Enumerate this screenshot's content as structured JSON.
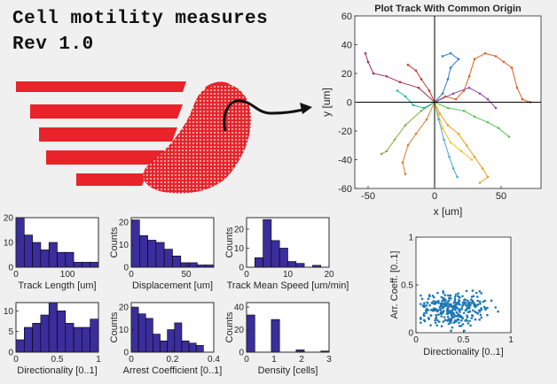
{
  "app": {
    "title_line1": "Cell motility measures",
    "title_line2": "Rev 1.0"
  },
  "colors": {
    "logo_red": "#e8232a",
    "histogram_bar": "#3a2d9c",
    "scatter_point": "#1f77b4",
    "axes_background": "#ffffff",
    "figure_background": "#f0f0f0"
  },
  "logo": {
    "icon": "cell-motility-logo-icon",
    "arrow_icon": "curved-arrow-icon"
  },
  "chart_data": [
    {
      "id": "track_plot",
      "type": "line",
      "title": "Plot Track With Common Origin",
      "xlabel": "x [um]",
      "ylabel": "y [um]",
      "xlim": [
        -60,
        80
      ],
      "ylim": [
        -60,
        60
      ],
      "x_ticks": [
        "-50",
        "0",
        "50"
      ],
      "x_tick_values": [
        -50,
        0,
        50
      ],
      "y_ticks": [
        "60",
        "40",
        "20",
        "0",
        "-20",
        "-40",
        "-60"
      ],
      "y_tick_values": [
        60,
        40,
        20,
        0,
        -20,
        -40,
        -60
      ],
      "grid": false,
      "origin_crosshair": true,
      "series": [
        {
          "color": "#e5a01e",
          "points": [
            [
              0,
              0
            ],
            [
              4,
              -8
            ],
            [
              10,
              -16
            ],
            [
              18,
              -22
            ],
            [
              24,
              -30
            ],
            [
              30,
              -38
            ],
            [
              36,
              -46
            ],
            [
              40,
              -52
            ],
            [
              34,
              -56
            ]
          ]
        },
        {
          "color": "#4aa3df",
          "points": [
            [
              0,
              0
            ],
            [
              3,
              -12
            ],
            [
              7,
              -26
            ],
            [
              11,
              -38
            ],
            [
              14,
              -46
            ],
            [
              17,
              -52
            ]
          ]
        },
        {
          "color": "#d95f1e",
          "points": [
            [
              0,
              0
            ],
            [
              8,
              4
            ],
            [
              16,
              2
            ],
            [
              22,
              8
            ],
            [
              26,
              18
            ],
            [
              30,
              30
            ],
            [
              38,
              34
            ],
            [
              46,
              32
            ],
            [
              52,
              28
            ],
            [
              58,
              24
            ],
            [
              62,
              10
            ],
            [
              66,
              2
            ],
            [
              72,
              0
            ]
          ]
        },
        {
          "color": "#2a7bd8",
          "points": [
            [
              0,
              0
            ],
            [
              6,
              6
            ],
            [
              10,
              16
            ],
            [
              12,
              24
            ],
            [
              18,
              30
            ],
            [
              12,
              34
            ],
            [
              6,
              32
            ]
          ]
        },
        {
          "color": "#7fb13c",
          "points": [
            [
              0,
              0
            ],
            [
              -10,
              -6
            ],
            [
              -22,
              -16
            ],
            [
              -30,
              -26
            ],
            [
              -36,
              -34
            ],
            [
              -40,
              -36
            ]
          ]
        },
        {
          "color": "#a03050",
          "points": [
            [
              0,
              0
            ],
            [
              -12,
              10
            ],
            [
              -26,
              14
            ],
            [
              -36,
              18
            ],
            [
              -46,
              20
            ],
            [
              -50,
              28
            ],
            [
              -52,
              34
            ]
          ]
        },
        {
          "color": "#e07b27",
          "points": [
            [
              0,
              0
            ],
            [
              -6,
              -12
            ],
            [
              -14,
              -22
            ],
            [
              -20,
              -30
            ],
            [
              -24,
              -42
            ],
            [
              -22,
              -50
            ]
          ]
        },
        {
          "color": "#5bbf5a",
          "points": [
            [
              0,
              0
            ],
            [
              10,
              -4
            ],
            [
              22,
              -6
            ],
            [
              30,
              -10
            ],
            [
              40,
              -14
            ],
            [
              48,
              -18
            ],
            [
              56,
              -24
            ]
          ]
        },
        {
          "color": "#8e44ad",
          "points": [
            [
              0,
              0
            ],
            [
              14,
              6
            ],
            [
              26,
              10
            ],
            [
              34,
              6
            ],
            [
              40,
              2
            ],
            [
              46,
              -4
            ]
          ]
        },
        {
          "color": "#c0392b",
          "points": [
            [
              0,
              0
            ],
            [
              -4,
              8
            ],
            [
              -10,
              16
            ],
            [
              -14,
              22
            ],
            [
              -20,
              26
            ]
          ]
        },
        {
          "color": "#1abc9c",
          "points": [
            [
              0,
              0
            ],
            [
              -8,
              -4
            ],
            [
              -16,
              -2
            ],
            [
              -22,
              4
            ],
            [
              -28,
              8
            ]
          ]
        },
        {
          "color": "#f1c40f",
          "points": [
            [
              0,
              0
            ],
            [
              6,
              -18
            ],
            [
              12,
              -28
            ],
            [
              20,
              -34
            ],
            [
              28,
              -40
            ]
          ]
        }
      ]
    },
    {
      "id": "track_length_hist",
      "type": "bar",
      "xlabel": "Track Length [um]",
      "ylabel": "",
      "xlim": [
        0,
        160
      ],
      "ylim": [
        0,
        20
      ],
      "x_ticks": [
        "0",
        "100"
      ],
      "x_tick_values": [
        0,
        100
      ],
      "y_ticks": [
        "0",
        "10",
        "20"
      ],
      "y_tick_values": [
        0,
        10,
        20
      ],
      "bin_edges": [
        0,
        16,
        32,
        48,
        64,
        80,
        96,
        112,
        128,
        144,
        160
      ],
      "values": [
        20,
        13,
        10,
        7,
        10,
        6,
        6,
        2,
        2,
        2
      ]
    },
    {
      "id": "displacement_hist",
      "type": "bar",
      "xlabel": "Displacement [um]",
      "ylabel": "Counts",
      "xlim": [
        0,
        75
      ],
      "ylim": [
        0,
        22
      ],
      "x_ticks": [
        "0",
        "50"
      ],
      "x_tick_values": [
        0,
        50
      ],
      "y_ticks": [
        "0",
        "10",
        "20"
      ],
      "y_tick_values": [
        0,
        10,
        20
      ],
      "bin_edges": [
        0,
        7.5,
        15,
        22.5,
        30,
        37.5,
        45,
        52.5,
        60,
        67.5,
        75
      ],
      "values": [
        21,
        14,
        12,
        11,
        8,
        5,
        2,
        2,
        1,
        1
      ]
    },
    {
      "id": "mean_speed_hist",
      "type": "bar",
      "xlabel": "Track Mean Speed [um/min]",
      "ylabel": "Counts",
      "xlim": [
        0,
        20
      ],
      "ylim": [
        0,
        26
      ],
      "x_ticks": [
        "0",
        "10",
        "20"
      ],
      "x_tick_values": [
        0,
        10,
        20
      ],
      "y_ticks": [
        "0",
        "10",
        "20"
      ],
      "y_tick_values": [
        0,
        10,
        20
      ],
      "bin_edges": [
        2,
        4,
        6,
        8,
        10,
        12,
        14,
        16,
        18,
        20
      ],
      "values": [
        5,
        25,
        14,
        10,
        3,
        2,
        0,
        1,
        0
      ]
    },
    {
      "id": "directionality_hist",
      "type": "bar",
      "xlabel": "Directionality [0..1]",
      "ylabel": "",
      "xlim": [
        0,
        1
      ],
      "ylim": [
        0,
        12
      ],
      "x_ticks": [
        "0",
        "0.5",
        "1"
      ],
      "x_tick_values": [
        0,
        0.5,
        1
      ],
      "y_ticks": [
        "0",
        "5",
        "10"
      ],
      "y_tick_values": [
        0,
        5,
        10
      ],
      "bin_edges": [
        0,
        0.1,
        0.2,
        0.3,
        0.4,
        0.5,
        0.6,
        0.7,
        0.8,
        0.9,
        1.0
      ],
      "values": [
        3,
        6,
        7,
        9,
        12,
        10,
        7,
        6,
        6,
        8
      ]
    },
    {
      "id": "arrest_coefficient_hist",
      "type": "bar",
      "xlabel": "Arrest Coefficient [0..1]",
      "ylabel": "Counts",
      "xlim": [
        0,
        0.4
      ],
      "ylim": [
        0,
        22
      ],
      "x_ticks": [
        "0",
        "0.2",
        "0.4"
      ],
      "x_tick_values": [
        0,
        0.2,
        0.4
      ],
      "y_ticks": [
        "0",
        "10",
        "20"
      ],
      "y_tick_values": [
        0,
        10,
        20
      ],
      "bin_edges": [
        0,
        0.035,
        0.07,
        0.105,
        0.14,
        0.175,
        0.21,
        0.245,
        0.28,
        0.315,
        0.35
      ],
      "values": [
        20,
        17,
        15,
        8,
        5,
        10,
        13,
        5,
        4,
        3
      ]
    },
    {
      "id": "density_hist",
      "type": "bar",
      "xlabel": "Density [cells]",
      "ylabel": "Counts",
      "xlim": [
        0,
        3
      ],
      "ylim": [
        0,
        44
      ],
      "x_ticks": [
        "0",
        "1",
        "2",
        "3"
      ],
      "x_tick_values": [
        0,
        1,
        2,
        3
      ],
      "y_ticks": [
        "0",
        "20",
        "40"
      ],
      "y_tick_values": [
        0,
        20,
        40
      ],
      "bin_edges": [
        0,
        0.3,
        0.6,
        0.9,
        1.2,
        1.5,
        1.8,
        2.1,
        2.4,
        2.7,
        3.0
      ],
      "values": [
        33,
        0,
        0,
        29,
        0,
        0,
        2,
        0,
        0,
        1
      ]
    },
    {
      "id": "arrest_vs_directionality",
      "type": "scatter",
      "xlabel": "Directionality [0..1]",
      "ylabel": "Arr. Coeff. [0..1]",
      "xlim": [
        0,
        1
      ],
      "ylim": [
        0,
        1
      ],
      "x_ticks": [
        "0",
        "0.5",
        "1"
      ],
      "x_tick_values": [
        0,
        0.5,
        1
      ],
      "y_ticks": [
        "1",
        "0.5",
        "0"
      ],
      "y_tick_values": [
        1,
        0.5,
        0
      ],
      "point_count": 320,
      "cluster_center": [
        0.42,
        0.25
      ],
      "cluster_spread": [
        0.18,
        0.08
      ],
      "x_range": [
        0.05,
        0.95
      ],
      "y_range": [
        0.02,
        0.5
      ]
    }
  ]
}
